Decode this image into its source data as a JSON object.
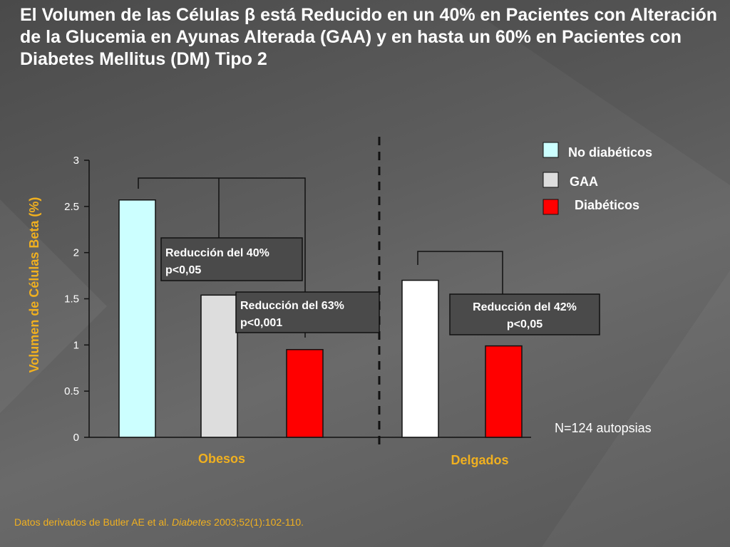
{
  "title": "El Volumen de las Células β está Reducido en un 40% en Pacientes con Alteración de la Glucemia en Ayunas Alterada (GAA) y en hasta un 60% en Pacientes con Diabetes Mellitus (DM) Tipo 2",
  "chart_data": {
    "type": "bar",
    "ylabel": "Volumen de Células Beta (%)",
    "ylim": [
      0,
      3
    ],
    "yticks": [
      "0",
      "0.5",
      "1",
      "1.5",
      "2",
      "2.5",
      "3"
    ],
    "groups": [
      {
        "label": "Obesos",
        "bars": [
          {
            "series": "No diabéticos",
            "value": 2.57
          },
          {
            "series": "GAA",
            "value": 1.54
          },
          {
            "series": "Diabéticos",
            "value": 0.95
          }
        ]
      },
      {
        "label": "Delgados",
        "bars": [
          {
            "series": "No diabéticos",
            "value": 1.7
          },
          {
            "series": "Diabéticos",
            "value": 0.99
          }
        ]
      }
    ],
    "series": [
      {
        "name": "No diabéticos",
        "color": "#ccffff"
      },
      {
        "name": "GAA",
        "color": "#dddddd"
      },
      {
        "name": "Diabéticos",
        "color": "#ff0000"
      }
    ],
    "delgados_nodiab_color": "#ffffff",
    "annotations": [
      {
        "line1": "Reducción del 40%",
        "line2": "p<0,05"
      },
      {
        "line1": "Reducción del 63%",
        "line2": "p<0,001"
      },
      {
        "line1": "Reducción del 42%",
        "line2": "p<0,05"
      }
    ],
    "note": "N=124 autopsias"
  },
  "source": {
    "prefix": "Datos derivados de Butler AE et al. ",
    "journal": "Diabetes",
    "suffix": " 2003;52(1):102-110."
  },
  "colors": {
    "accent": "#f0b020",
    "text": "#ffffff"
  }
}
